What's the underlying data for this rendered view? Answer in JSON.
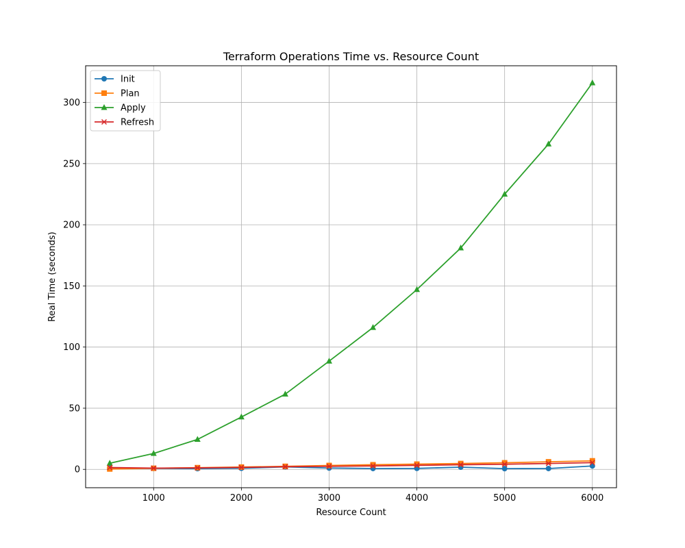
{
  "chart_data": {
    "type": "line",
    "title": "Terraform Operations Time vs. Resource Count",
    "xlabel": "Resource Count",
    "ylabel": "Real Time (seconds)",
    "xlim": [
      225,
      6275
    ],
    "ylim": [
      -15,
      330
    ],
    "xticks": [
      1000,
      2000,
      3000,
      4000,
      5000,
      6000
    ],
    "yticks": [
      0,
      50,
      100,
      150,
      200,
      250,
      300
    ],
    "grid": true,
    "legend_position": "top-left",
    "x": [
      500,
      1000,
      1500,
      2000,
      2500,
      3000,
      3500,
      4000,
      4500,
      5000,
      5500,
      6000
    ],
    "series": [
      {
        "name": "Init",
        "color": "#1f77b4",
        "marker": "circle",
        "values": [
          1.0,
          0.8,
          0.6,
          0.9,
          2.0,
          1.1,
          0.7,
          0.8,
          1.8,
          0.6,
          0.7,
          2.8
        ]
      },
      {
        "name": "Plan",
        "color": "#ff7f0e",
        "marker": "square",
        "values": [
          0.3,
          0.9,
          1.4,
          1.9,
          2.5,
          3.2,
          3.8,
          4.3,
          4.8,
          5.4,
          6.2,
          7.0
        ]
      },
      {
        "name": "Apply",
        "color": "#2ca02c",
        "marker": "triangle",
        "values": [
          5.0,
          13.0,
          24.5,
          42.8,
          61.5,
          88.5,
          116.0,
          147.0,
          181.0,
          225.0,
          266.0,
          316.0
        ]
      },
      {
        "name": "Refresh",
        "color": "#d62728",
        "marker": "x",
        "values": [
          1.5,
          1.0,
          1.2,
          1.6,
          2.2,
          2.5,
          2.8,
          3.3,
          3.8,
          4.2,
          4.8,
          5.5
        ]
      }
    ]
  }
}
